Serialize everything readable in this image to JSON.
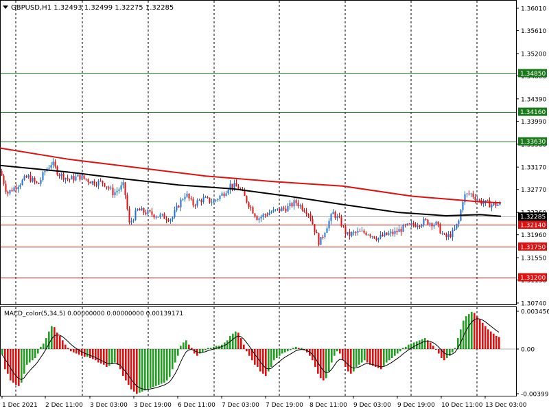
{
  "window": {
    "menu_arrow": "dropdown-arrow",
    "symbol_info": "GBPUSD,H1  1.32493 1.32499 1.32275 1.32285",
    "indicator_info": "MACD_color(5,34,5) 0.00000000 0.00000000 0.00139171"
  },
  "price_axis": {
    "labels": [
      "1.36010",
      "1.35610",
      "1.35200",
      "1.34800",
      "1.34390",
      "1.33990",
      "1.33580",
      "1.33170",
      "1.32770",
      "1.32360",
      "1.31960",
      "1.31550",
      "1.31150",
      "1.30740"
    ]
  },
  "macd_axis": {
    "labels": [
      "0.0034562",
      "0.00",
      "-0.003990"
    ]
  },
  "time_axis": {
    "labels": [
      "1 Dec 2021",
      "2 Dec 11:00",
      "3 Dec 03:00",
      "3 Dec 19:00",
      "6 Dec 11:00",
      "7 Dec 03:00",
      "7 Dec 19:00",
      "8 Dec 11:00",
      "9 Dec 03:00",
      "9 Dec 19:00",
      "10 Dec 11:00",
      "13 Dec 03:00"
    ]
  },
  "levels": [
    {
      "label": "1.34850",
      "value": 1.3485,
      "color": "#1a7a1a",
      "kind": "resistance"
    },
    {
      "label": "1.34160",
      "value": 1.3416,
      "color": "#1a7a1a",
      "kind": "resistance"
    },
    {
      "label": "1.33630",
      "value": 1.3363,
      "color": "#1a7a1a",
      "kind": "resistance"
    },
    {
      "label": "1.32140",
      "value": 1.3214,
      "color": "#e01010",
      "kind": "support"
    },
    {
      "label": "1.31750",
      "value": 1.3175,
      "color": "#e01010",
      "kind": "support"
    },
    {
      "label": "1.31200",
      "value": 1.312,
      "color": "#e01010",
      "kind": "support"
    }
  ],
  "current_price": {
    "label": "1.32285",
    "value": 1.32285,
    "color": "#000000"
  },
  "colors": {
    "bull": "#1e6fd9",
    "bear": "#e01010",
    "ma_slow": "#e01010",
    "ma_fast": "#000000",
    "macd_up": "#22a022",
    "macd_down": "#e01010"
  },
  "chart_data": {
    "type": "candlestick",
    "symbol": "GBPUSD",
    "timeframe": "H1",
    "ylim": [
      1.3074,
      1.3601
    ],
    "x_labels": [
      "1 Dec 2021",
      "2 Dec 11:00",
      "3 Dec 03:00",
      "3 Dec 19:00",
      "6 Dec 11:00",
      "7 Dec 03:00",
      "7 Dec 19:00",
      "8 Dec 11:00",
      "9 Dec 03:00",
      "9 Dec 19:00",
      "10 Dec 11:00",
      "13 Dec 03:00"
    ],
    "last": {
      "open": 1.32493,
      "high": 1.32499,
      "low": 1.32275,
      "close": 1.32285
    },
    "close_path": [
      [
        0,
        1.331
      ],
      [
        10,
        1.327
      ],
      [
        25,
        1.3285
      ],
      [
        40,
        1.33
      ],
      [
        55,
        1.3285
      ],
      [
        65,
        1.331
      ],
      [
        75,
        1.3325
      ],
      [
        85,
        1.3305
      ],
      [
        100,
        1.3295
      ],
      [
        115,
        1.33
      ],
      [
        135,
        1.329
      ],
      [
        150,
        1.329
      ],
      [
        165,
        1.327
      ],
      [
        180,
        1.3285
      ],
      [
        188,
        1.3215
      ],
      [
        200,
        1.324
      ],
      [
        215,
        1.3235
      ],
      [
        230,
        1.323
      ],
      [
        250,
        1.3225
      ],
      [
        260,
        1.325
      ],
      [
        270,
        1.327
      ],
      [
        280,
        1.325
      ],
      [
        295,
        1.326
      ],
      [
        310,
        1.3255
      ],
      [
        325,
        1.327
      ],
      [
        335,
        1.3285
      ],
      [
        348,
        1.328
      ],
      [
        360,
        1.3255
      ],
      [
        375,
        1.3225
      ],
      [
        390,
        1.3235
      ],
      [
        405,
        1.324
      ],
      [
        420,
        1.3245
      ],
      [
        430,
        1.3255
      ],
      [
        440,
        1.3245
      ],
      [
        450,
        1.3235
      ],
      [
        458,
        1.3205
      ],
      [
        465,
        1.318
      ],
      [
        475,
        1.321
      ],
      [
        485,
        1.3235
      ],
      [
        495,
        1.322
      ],
      [
        505,
        1.3195
      ],
      [
        520,
        1.32
      ],
      [
        535,
        1.32
      ],
      [
        550,
        1.319
      ],
      [
        560,
        1.3195
      ],
      [
        575,
        1.32
      ],
      [
        590,
        1.321
      ],
      [
        605,
        1.3215
      ],
      [
        620,
        1.322
      ],
      [
        635,
        1.3215
      ],
      [
        648,
        1.319
      ],
      [
        660,
        1.32
      ],
      [
        668,
        1.322
      ],
      [
        675,
        1.3265
      ],
      [
        685,
        1.327
      ],
      [
        700,
        1.3255
      ],
      [
        715,
        1.325
      ],
      [
        726,
        1.325
      ]
    ],
    "ma_slow_path": [
      [
        0,
        1.3351
      ],
      [
        100,
        1.3331
      ],
      [
        200,
        1.3316
      ],
      [
        300,
        1.3301
      ],
      [
        400,
        1.3291
      ],
      [
        500,
        1.3283
      ],
      [
        600,
        1.3265
      ],
      [
        700,
        1.3255
      ],
      [
        730,
        1.3253
      ]
    ],
    "ma_fast_path": [
      [
        0,
        1.332
      ],
      [
        100,
        1.3308
      ],
      [
        180,
        1.3296
      ],
      [
        260,
        1.3285
      ],
      [
        340,
        1.3278
      ],
      [
        420,
        1.3265
      ],
      [
        500,
        1.325
      ],
      [
        580,
        1.3236
      ],
      [
        650,
        1.323
      ],
      [
        700,
        1.3232
      ],
      [
        730,
        1.3229
      ]
    ],
    "macd_ylim": [
      -0.00399,
      0.0034562
    ],
    "macd": [
      [
        2,
        -0.0005
      ],
      [
        6,
        -0.0018
      ],
      [
        10,
        -0.0022
      ],
      [
        14,
        -0.0028
      ],
      [
        18,
        -0.003
      ],
      [
        22,
        -0.0032
      ],
      [
        26,
        -0.0033
      ],
      [
        30,
        -0.003
      ],
      [
        34,
        -0.0022
      ],
      [
        38,
        -0.0014
      ],
      [
        42,
        -0.0012
      ],
      [
        46,
        -0.001
      ],
      [
        50,
        -0.0008
      ],
      [
        54,
        -0.0004
      ],
      [
        58,
        0.0002
      ],
      [
        62,
        0.0005
      ],
      [
        66,
        0.001
      ],
      [
        70,
        0.0016
      ],
      [
        74,
        0.0021
      ],
      [
        78,
        0.002
      ],
      [
        82,
        0.0015
      ],
      [
        86,
        0.0012
      ],
      [
        90,
        0.0008
      ],
      [
        94,
        0.0004
      ],
      [
        98,
        0.0001
      ],
      [
        102,
        -0.0002
      ],
      [
        106,
        -0.0003
      ],
      [
        110,
        -0.0004
      ],
      [
        114,
        -0.0005
      ],
      [
        118,
        -0.0006
      ],
      [
        122,
        -0.0007
      ],
      [
        126,
        -0.0007
      ],
      [
        130,
        -0.0008
      ],
      [
        134,
        -0.0009
      ],
      [
        138,
        -0.001
      ],
      [
        142,
        -0.0012
      ],
      [
        146,
        -0.0013
      ],
      [
        150,
        -0.0014
      ],
      [
        154,
        -0.0016
      ],
      [
        158,
        -0.0015
      ],
      [
        162,
        -0.0013
      ],
      [
        166,
        -0.0012
      ],
      [
        170,
        -0.0014
      ],
      [
        174,
        -0.0018
      ],
      [
        178,
        -0.0024
      ],
      [
        182,
        -0.0028
      ],
      [
        186,
        -0.0032
      ],
      [
        190,
        -0.0036
      ],
      [
        194,
        -0.0038
      ],
      [
        198,
        -0.004
      ],
      [
        202,
        -0.0039
      ],
      [
        206,
        -0.0038
      ],
      [
        210,
        -0.0037
      ],
      [
        214,
        -0.0036
      ],
      [
        218,
        -0.0035
      ],
      [
        222,
        -0.0034
      ],
      [
        226,
        -0.0033
      ],
      [
        230,
        -0.0032
      ],
      [
        234,
        -0.0031
      ],
      [
        238,
        -0.003
      ],
      [
        242,
        -0.0028
      ],
      [
        246,
        -0.0025
      ],
      [
        250,
        -0.0018
      ],
      [
        254,
        -0.0012
      ],
      [
        258,
        -0.0006
      ],
      [
        262,
        0.0003
      ],
      [
        266,
        0.0006
      ],
      [
        270,
        0.0008
      ],
      [
        274,
        0.0004
      ],
      [
        278,
        0.0001
      ],
      [
        282,
        -0.0004
      ],
      [
        286,
        -0.0006
      ],
      [
        290,
        -0.0004
      ],
      [
        294,
        -0.0003
      ],
      [
        298,
        -0.0001
      ],
      [
        302,
        0.0001
      ],
      [
        306,
        0.0001
      ],
      [
        310,
        0.0002
      ],
      [
        314,
        0.0003
      ],
      [
        318,
        0.0003
      ],
      [
        322,
        0.0004
      ],
      [
        326,
        0.0006
      ],
      [
        330,
        0.0008
      ],
      [
        334,
        0.0012
      ],
      [
        338,
        0.0014
      ],
      [
        342,
        0.0016
      ],
      [
        346,
        0.0015
      ],
      [
        350,
        0.001
      ],
      [
        354,
        0.0004
      ],
      [
        358,
        -0.0002
      ],
      [
        362,
        -0.0006
      ],
      [
        366,
        -0.001
      ],
      [
        370,
        -0.0014
      ],
      [
        374,
        -0.0016
      ],
      [
        378,
        -0.002
      ],
      [
        382,
        -0.0022
      ],
      [
        386,
        -0.0024
      ],
      [
        390,
        -0.002
      ],
      [
        394,
        -0.0016
      ],
      [
        398,
        -0.001
      ],
      [
        402,
        -0.0008
      ],
      [
        406,
        -0.0006
      ],
      [
        410,
        -0.0004
      ],
      [
        414,
        -0.0003
      ],
      [
        418,
        -0.0002
      ],
      [
        422,
        -0.0001
      ],
      [
        426,
        0.0001
      ],
      [
        430,
        0.0002
      ],
      [
        434,
        0.0001
      ],
      [
        438,
        0.0001
      ],
      [
        442,
        -0.0001
      ],
      [
        446,
        -0.0003
      ],
      [
        450,
        -0.0006
      ],
      [
        454,
        -0.001
      ],
      [
        458,
        -0.0016
      ],
      [
        462,
        -0.0022
      ],
      [
        466,
        -0.0026
      ],
      [
        470,
        -0.0028
      ],
      [
        474,
        -0.0026
      ],
      [
        478,
        -0.002
      ],
      [
        482,
        -0.0012
      ],
      [
        486,
        -0.0006
      ],
      [
        490,
        -0.0002
      ],
      [
        494,
        -0.0004
      ],
      [
        498,
        -0.001
      ],
      [
        502,
        -0.0016
      ],
      [
        506,
        -0.002
      ],
      [
        510,
        -0.0022
      ],
      [
        514,
        -0.002
      ],
      [
        518,
        -0.0016
      ],
      [
        522,
        -0.0014
      ],
      [
        526,
        -0.0012
      ],
      [
        530,
        -0.001
      ],
      [
        534,
        -0.0012
      ],
      [
        538,
        -0.0014
      ],
      [
        542,
        -0.0015
      ],
      [
        546,
        -0.0016
      ],
      [
        550,
        -0.0017
      ],
      [
        554,
        -0.0018
      ],
      [
        558,
        -0.0015
      ],
      [
        562,
        -0.0012
      ],
      [
        566,
        -0.001
      ],
      [
        570,
        -0.0008
      ],
      [
        574,
        -0.0006
      ],
      [
        578,
        -0.0004
      ],
      [
        582,
        -0.0002
      ],
      [
        586,
        0.0001
      ],
      [
        590,
        0.0002
      ],
      [
        594,
        0.0004
      ],
      [
        598,
        0.0005
      ],
      [
        602,
        0.0006
      ],
      [
        606,
        0.0007
      ],
      [
        610,
        0.0008
      ],
      [
        614,
        0.0009
      ],
      [
        618,
        0.001
      ],
      [
        622,
        0.0008
      ],
      [
        626,
        0.0006
      ],
      [
        630,
        0.0003
      ],
      [
        634,
        0.0
      ],
      [
        638,
        -0.0004
      ],
      [
        642,
        -0.0008
      ],
      [
        646,
        -0.001
      ],
      [
        650,
        -0.0008
      ],
      [
        654,
        -0.0006
      ],
      [
        658,
        -0.0003
      ],
      [
        662,
        0.0001
      ],
      [
        666,
        0.001
      ],
      [
        670,
        0.0018
      ],
      [
        674,
        0.0026
      ],
      [
        678,
        0.003
      ],
      [
        682,
        0.0032
      ],
      [
        686,
        0.0034
      ],
      [
        690,
        0.0033
      ],
      [
        694,
        0.003
      ],
      [
        698,
        0.0027
      ],
      [
        702,
        0.0024
      ],
      [
        706,
        0.0021
      ],
      [
        710,
        0.0018
      ],
      [
        714,
        0.0016
      ],
      [
        718,
        0.0014
      ],
      [
        722,
        0.0012
      ],
      [
        726,
        0.0011
      ]
    ]
  }
}
